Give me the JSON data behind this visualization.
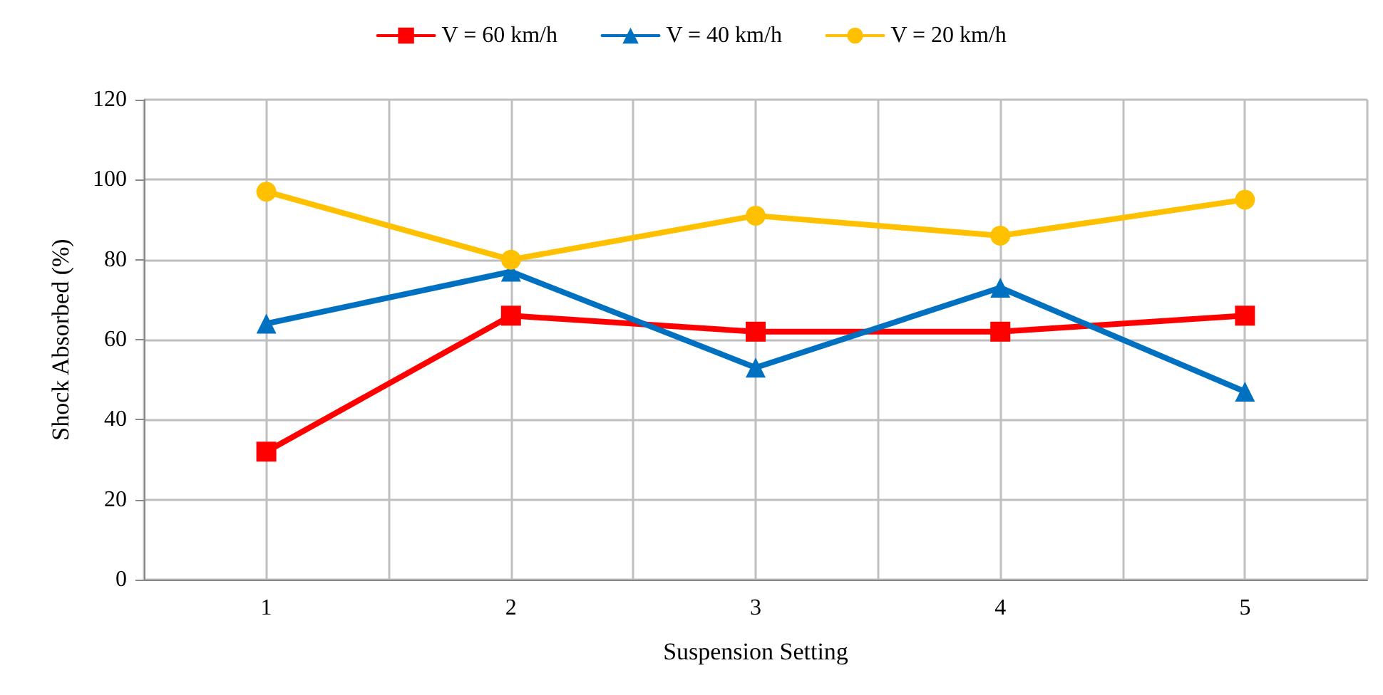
{
  "chart_data": {
    "type": "line",
    "xlabel": "Suspension Setting",
    "ylabel": "Shock Absorbed (%)",
    "x": [
      1,
      2,
      3,
      4,
      5
    ],
    "series": [
      {
        "name": "V = 60 km/h",
        "color": "#ff0000",
        "marker": "square",
        "values": [
          32,
          66,
          62,
          62,
          66
        ]
      },
      {
        "name": "V = 40 km/h",
        "color": "#0070c0",
        "marker": "triangle",
        "values": [
          64,
          77,
          53,
          73,
          47
        ]
      },
      {
        "name": "V = 20 km/h",
        "color": "#ffc000",
        "marker": "circle",
        "values": [
          97,
          80,
          91,
          86,
          95
        ]
      }
    ],
    "xlim": [
      0.5,
      5.5
    ],
    "xticks": [
      {
        "value": 0.5,
        "label": null
      },
      1,
      {
        "value": 1.5,
        "label": null
      },
      2,
      {
        "value": 2.5,
        "label": null
      },
      3,
      {
        "value": 3.5,
        "label": null
      },
      4,
      {
        "value": 4.5,
        "label": null
      },
      5,
      {
        "value": 5.5,
        "label": null
      }
    ],
    "ylim": [
      0,
      120
    ],
    "yticks": [
      0,
      20,
      40,
      60,
      80,
      100,
      120
    ],
    "grid": true,
    "legend": "top",
    "line_style": "solid"
  }
}
